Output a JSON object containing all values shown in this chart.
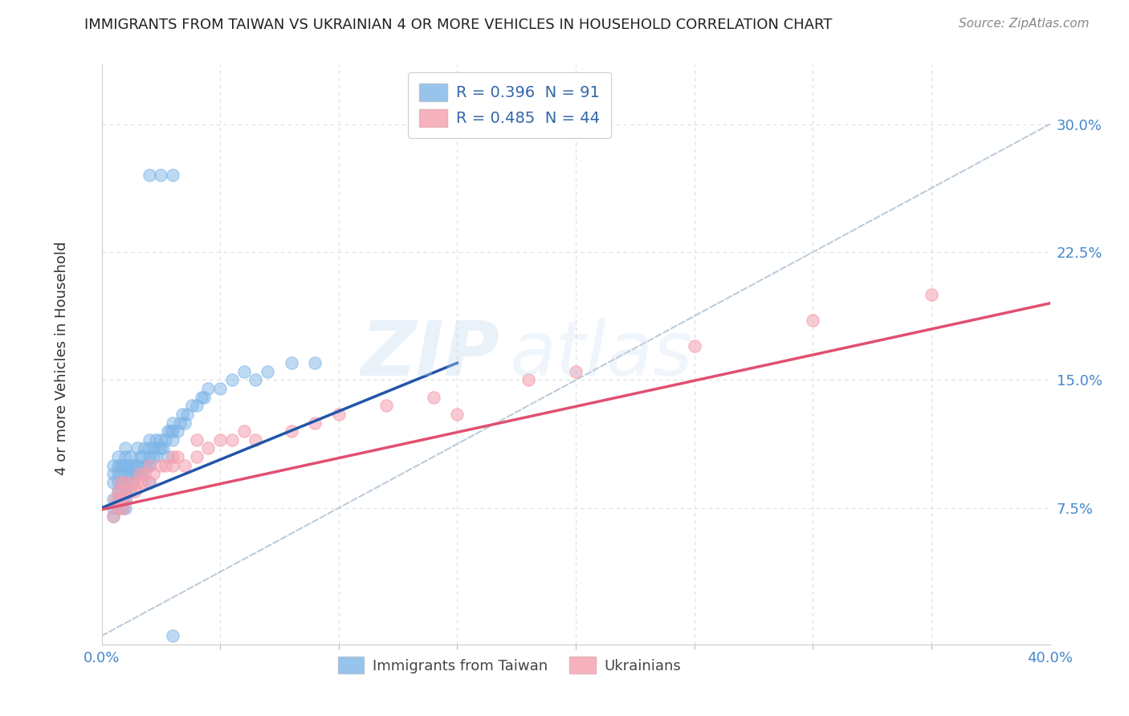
{
  "title": "IMMIGRANTS FROM TAIWAN VS UKRAINIAN 4 OR MORE VEHICLES IN HOUSEHOLD CORRELATION CHART",
  "source": "Source: ZipAtlas.com",
  "ylabel": "4 or more Vehicles in Household",
  "ytick_labels": [
    "7.5%",
    "15.0%",
    "22.5%",
    "30.0%"
  ],
  "ytick_values": [
    0.075,
    0.15,
    0.225,
    0.3
  ],
  "xlim": [
    0.0,
    0.4
  ],
  "ylim": [
    -0.005,
    0.335
  ],
  "legend_taiwan": "R = 0.396  N = 91",
  "legend_ukrainian": "R = 0.485  N = 44",
  "taiwan_color": "#7EB6E8",
  "ukrainian_color": "#F4A0B0",
  "taiwan_trend_color": "#2255AA",
  "ukrainian_trend_color": "#E05070",
  "ref_line_color": "#BBCCDD",
  "background_color": "#FFFFFF",
  "grid_color": "#DDDDDD",
  "watermark_color": "#C8DCF0",
  "taiwan_scatter_x": [
    0.005,
    0.005,
    0.005,
    0.005,
    0.005,
    0.005,
    0.007,
    0.007,
    0.007,
    0.007,
    0.007,
    0.007,
    0.007,
    0.008,
    0.008,
    0.008,
    0.008,
    0.008,
    0.009,
    0.009,
    0.009,
    0.009,
    0.01,
    0.01,
    0.01,
    0.01,
    0.01,
    0.01,
    0.01,
    0.01,
    0.012,
    0.012,
    0.012,
    0.012,
    0.012,
    0.013,
    0.013,
    0.013,
    0.014,
    0.014,
    0.015,
    0.015,
    0.015,
    0.016,
    0.016,
    0.017,
    0.017,
    0.018,
    0.018,
    0.019,
    0.02,
    0.02,
    0.02,
    0.02,
    0.02,
    0.022,
    0.022,
    0.023,
    0.023,
    0.024,
    0.025,
    0.025,
    0.026,
    0.027,
    0.028,
    0.028,
    0.029,
    0.03,
    0.03,
    0.03,
    0.032,
    0.033,
    0.034,
    0.035,
    0.036,
    0.038,
    0.04,
    0.042,
    0.043,
    0.045,
    0.05,
    0.055,
    0.06,
    0.065,
    0.07,
    0.08,
    0.09,
    0.02,
    0.025,
    0.03,
    0.03
  ],
  "taiwan_scatter_y": [
    0.08,
    0.09,
    0.1,
    0.095,
    0.07,
    0.075,
    0.085,
    0.09,
    0.095,
    0.08,
    0.1,
    0.105,
    0.075,
    0.09,
    0.095,
    0.085,
    0.08,
    0.1,
    0.08,
    0.09,
    0.1,
    0.075,
    0.085,
    0.09,
    0.095,
    0.1,
    0.105,
    0.08,
    0.075,
    0.11,
    0.1,
    0.095,
    0.09,
    0.085,
    0.105,
    0.09,
    0.095,
    0.1,
    0.095,
    0.1,
    0.095,
    0.1,
    0.11,
    0.095,
    0.105,
    0.095,
    0.105,
    0.1,
    0.11,
    0.1,
    0.1,
    0.105,
    0.11,
    0.115,
    0.09,
    0.105,
    0.11,
    0.105,
    0.115,
    0.11,
    0.11,
    0.115,
    0.11,
    0.115,
    0.12,
    0.105,
    0.12,
    0.115,
    0.12,
    0.125,
    0.12,
    0.125,
    0.13,
    0.125,
    0.13,
    0.135,
    0.135,
    0.14,
    0.14,
    0.145,
    0.145,
    0.15,
    0.155,
    0.15,
    0.155,
    0.16,
    0.16,
    0.27,
    0.27,
    0.27,
    0.0
  ],
  "ukrainian_scatter_x": [
    0.005,
    0.006,
    0.007,
    0.007,
    0.008,
    0.008,
    0.009,
    0.009,
    0.01,
    0.01,
    0.012,
    0.013,
    0.014,
    0.015,
    0.016,
    0.017,
    0.018,
    0.02,
    0.02,
    0.022,
    0.025,
    0.027,
    0.03,
    0.03,
    0.032,
    0.035,
    0.04,
    0.04,
    0.045,
    0.05,
    0.055,
    0.06,
    0.065,
    0.08,
    0.09,
    0.1,
    0.12,
    0.14,
    0.15,
    0.18,
    0.2,
    0.25,
    0.3,
    0.35
  ],
  "ukrainian_scatter_y": [
    0.07,
    0.08,
    0.075,
    0.085,
    0.08,
    0.09,
    0.075,
    0.085,
    0.08,
    0.09,
    0.085,
    0.09,
    0.085,
    0.09,
    0.095,
    0.09,
    0.095,
    0.09,
    0.1,
    0.095,
    0.1,
    0.1,
    0.1,
    0.105,
    0.105,
    0.1,
    0.105,
    0.115,
    0.11,
    0.115,
    0.115,
    0.12,
    0.115,
    0.12,
    0.125,
    0.13,
    0.135,
    0.14,
    0.13,
    0.15,
    0.155,
    0.17,
    0.185,
    0.2
  ],
  "taiwan_trend_x": [
    0.0,
    0.15
  ],
  "taiwan_trend_y": [
    0.075,
    0.16
  ],
  "ukrainian_trend_x": [
    0.0,
    0.4
  ],
  "ukrainian_trend_y": [
    0.074,
    0.195
  ],
  "ref_line_x": [
    0.0,
    0.4
  ],
  "ref_line_y": [
    0.0,
    0.3
  ]
}
